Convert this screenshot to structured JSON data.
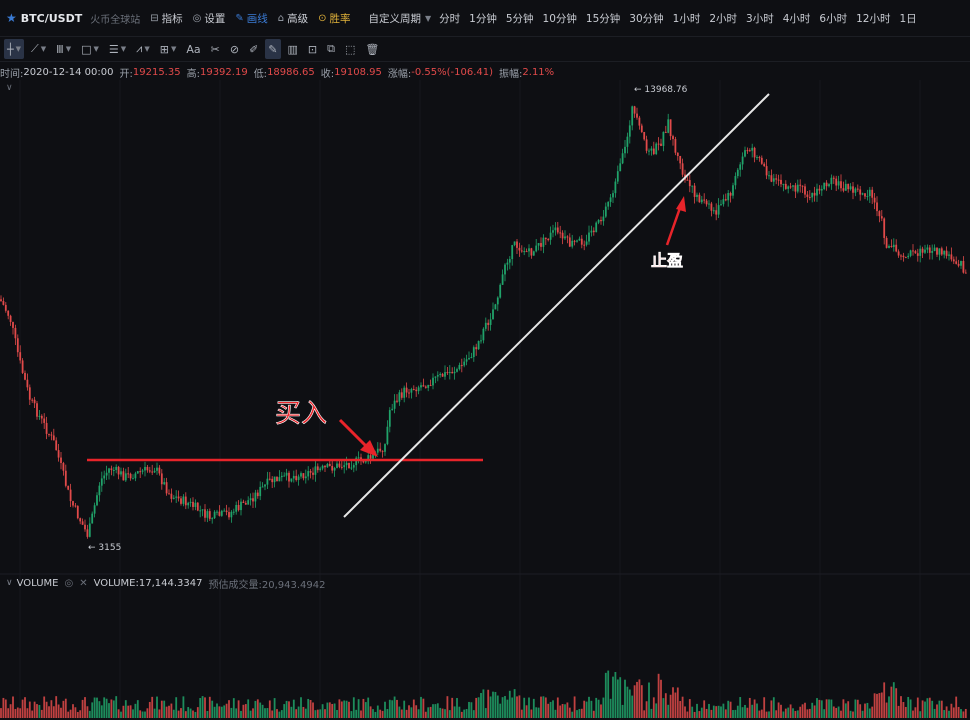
{
  "header": {
    "pair": "BTC/USDT",
    "exchange": "火币全球站",
    "menu": [
      {
        "icon": "indicator-icon",
        "label": "指标"
      },
      {
        "icon": "settings-icon",
        "label": "设置"
      },
      {
        "icon": "pen-icon",
        "label": "画线",
        "active": true
      },
      {
        "icon": "advanced-icon",
        "label": "高级"
      },
      {
        "icon": "winrate-icon",
        "label": "胜率",
        "color": "#e0b13a"
      }
    ],
    "custom_period": "自定义周期",
    "periods": [
      "分时",
      "1分钟",
      "5分钟",
      "10分钟",
      "15分钟",
      "30分钟",
      "1小时",
      "2小时",
      "3小时",
      "4小时",
      "6小时",
      "12小时",
      "1日"
    ]
  },
  "toolbar": {
    "tools": [
      "crosshair-icon",
      "trendline-icon",
      "vertical-lines-icon",
      "rectangle-icon",
      "horizontal-lines-icon",
      "wave-icon",
      "measure-icon",
      "text-icon",
      "brush-icon",
      "eraser-icon",
      "ruler-icon",
      "pencil-icon",
      "barcode-icon",
      "lock-icon",
      "copy-icon",
      "screenshot-icon",
      "trash-icon"
    ],
    "text_tool_label": "Aa"
  },
  "info": {
    "time_label": "时间:",
    "time": "2020-12-14 00:00",
    "open_label": "开:",
    "open": "19215.35",
    "high_label": "高:",
    "high": "19392.19",
    "low_label": "低:",
    "low": "18986.65",
    "close_label": "收:",
    "close": "19108.95",
    "change_label": "涨幅:",
    "change": "-0.55%(-106.41)",
    "amplitude_label": "振幅:",
    "amplitude": "2.11%"
  },
  "chart_data": {
    "type": "candlestick",
    "series_up_color": "#20a36a",
    "series_down_color": "#e14a4a",
    "max_marker": "13968.76",
    "min_marker": "3155",
    "annotations": {
      "buy_label": "买入",
      "take_profit_label": "止盈",
      "annotation_color": "#e8242a",
      "trendline_color": "#e6e6e6"
    },
    "price_path": [
      [
        0,
        0.54
      ],
      [
        10,
        0.5
      ],
      [
        20,
        0.4
      ],
      [
        30,
        0.32
      ],
      [
        40,
        0.28
      ],
      [
        55,
        0.22
      ],
      [
        70,
        0.1
      ],
      [
        88,
        0.02
      ],
      [
        100,
        0.14
      ],
      [
        110,
        0.17
      ],
      [
        125,
        0.15
      ],
      [
        140,
        0.16
      ],
      [
        155,
        0.17
      ],
      [
        170,
        0.11
      ],
      [
        190,
        0.09
      ],
      [
        210,
        0.06
      ],
      [
        230,
        0.07
      ],
      [
        250,
        0.1
      ],
      [
        270,
        0.14
      ],
      [
        290,
        0.15
      ],
      [
        310,
        0.16
      ],
      [
        330,
        0.17
      ],
      [
        350,
        0.18
      ],
      [
        370,
        0.19
      ],
      [
        385,
        0.22
      ],
      [
        390,
        0.3
      ],
      [
        405,
        0.34
      ],
      [
        420,
        0.35
      ],
      [
        440,
        0.37
      ],
      [
        460,
        0.39
      ],
      [
        475,
        0.43
      ],
      [
        490,
        0.5
      ],
      [
        500,
        0.56
      ],
      [
        505,
        0.62
      ],
      [
        515,
        0.66
      ],
      [
        530,
        0.64
      ],
      [
        545,
        0.67
      ],
      [
        555,
        0.69
      ],
      [
        570,
        0.66
      ],
      [
        585,
        0.67
      ],
      [
        600,
        0.71
      ],
      [
        615,
        0.79
      ],
      [
        625,
        0.87
      ],
      [
        632,
        0.96
      ],
      [
        640,
        0.91
      ],
      [
        650,
        0.86
      ],
      [
        660,
        0.88
      ],
      [
        668,
        0.93
      ],
      [
        675,
        0.87
      ],
      [
        685,
        0.8
      ],
      [
        700,
        0.76
      ],
      [
        715,
        0.73
      ],
      [
        730,
        0.77
      ],
      [
        745,
        0.87
      ],
      [
        758,
        0.86
      ],
      [
        770,
        0.8
      ],
      [
        785,
        0.79
      ],
      [
        800,
        0.78
      ],
      [
        815,
        0.77
      ],
      [
        828,
        0.8
      ],
      [
        840,
        0.79
      ],
      [
        855,
        0.78
      ],
      [
        870,
        0.77
      ],
      [
        880,
        0.73
      ],
      [
        886,
        0.66
      ],
      [
        900,
        0.64
      ],
      [
        915,
        0.64
      ],
      [
        930,
        0.65
      ],
      [
        945,
        0.64
      ],
      [
        960,
        0.62
      ],
      [
        970,
        0.58
      ]
    ]
  },
  "volume": {
    "label": "VOLUME",
    "value_label": "VOLUME:",
    "value": "17,144.3347",
    "estimate_label": "预估成交量:",
    "estimate": "20,943.4942"
  }
}
